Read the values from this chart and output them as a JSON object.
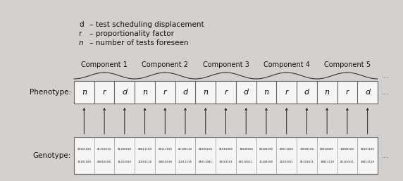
{
  "bg_color": "#d3d0ce",
  "white_box": "#f5f5f5",
  "genotype_label": "Genotype:",
  "phenotype_label": "Phenotype:",
  "phenotype_cells": [
    "n",
    "r",
    "d",
    "n",
    "r",
    "d",
    "n",
    "r",
    "d",
    "n",
    "r",
    "d",
    "n",
    "r",
    "d"
  ],
  "component_labels": [
    "Component 1",
    "Component 2",
    "Component 3",
    "Component 4",
    "Component 5"
  ],
  "legend_lines": [
    [
      "n",
      " – number of tests foreseen"
    ],
    [
      "r",
      " – proportionality factor"
    ],
    [
      "d",
      " – test scheduling displacement"
    ]
  ],
  "geno_row1_segs": [
    "00101100",
    "01101010",
    "01100100",
    "00011100",
    "00111100",
    "01100110",
    "01000100",
    "01010000",
    "11000000",
    "00100100",
    "00011000",
    "10000100",
    "00010000",
    "10000100",
    "00101100"
  ],
  "geno_row2_segs": [
    "11101100",
    "00010100",
    "11101010",
    "11001110",
    "10010010",
    "11011110",
    "01011001",
    "10101101",
    "00110011",
    "11100100",
    "11001011",
    "01101011",
    "10011110",
    "01101011",
    "10011110"
  ],
  "num_geno_cols": 15,
  "num_phen_cols": 15,
  "arrow_color": "#222222",
  "text_color": "#111111",
  "edge_color": "#666666",
  "dot_dot_dot": "...",
  "figsize": [
    5.72,
    2.57
  ],
  "dpi": 100
}
